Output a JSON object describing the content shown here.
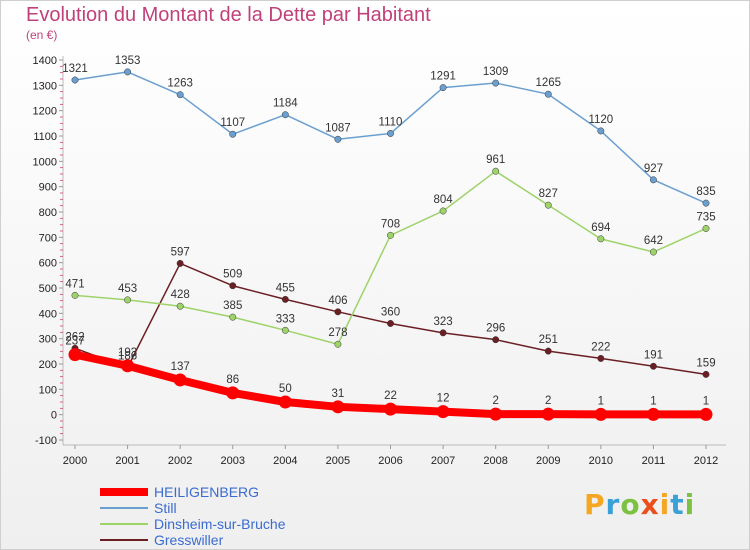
{
  "header": {
    "title": "Evolution du Montant de la Dette par Habitant",
    "unit": "(en €)"
  },
  "logo": {
    "letters": [
      "P",
      "r",
      "o",
      "x",
      "i",
      "t",
      "i"
    ],
    "colors": [
      "#f5a623",
      "#3aa0d8",
      "#7cc242",
      "#e94e1b",
      "#f5a623",
      "#3aa0d8",
      "#7cc242"
    ]
  },
  "chart_data": {
    "type": "line",
    "title": "Evolution du Montant de la Dette par Habitant",
    "ylabel": "(en €)",
    "x": [
      "2000",
      "2001",
      "2002",
      "2003",
      "2004",
      "2005",
      "2006",
      "2007",
      "2008",
      "2009",
      "2010",
      "2011",
      "2012"
    ],
    "ylim": [
      -100,
      1400
    ],
    "yticks": [
      -100,
      0,
      100,
      200,
      300,
      400,
      500,
      600,
      700,
      800,
      900,
      1000,
      1100,
      1200,
      1300,
      1400
    ],
    "grid": false,
    "legend": "bottom-left",
    "series": [
      {
        "name": "HEILIGENBERG",
        "color": "#ff0000",
        "values": [
          237,
          193,
          137,
          86,
          50,
          31,
          22,
          12,
          2,
          2,
          1,
          1,
          1
        ]
      },
      {
        "name": "Still",
        "color": "#6a9fd0",
        "values": [
          1321,
          1353,
          1263,
          1107,
          1184,
          1087,
          1110,
          1291,
          1309,
          1265,
          1120,
          927,
          835
        ]
      },
      {
        "name": "Dinsheim-sur-Bruche",
        "color": "#9ed36a",
        "values": [
          471,
          453,
          428,
          385,
          333,
          278,
          708,
          804,
          961,
          827,
          694,
          642,
          735
        ]
      },
      {
        "name": "Gresswiller",
        "color": "#6b1f24",
        "values": [
          262,
          186,
          597,
          509,
          455,
          406,
          360,
          323,
          296,
          251,
          222,
          191,
          159
        ]
      }
    ]
  }
}
